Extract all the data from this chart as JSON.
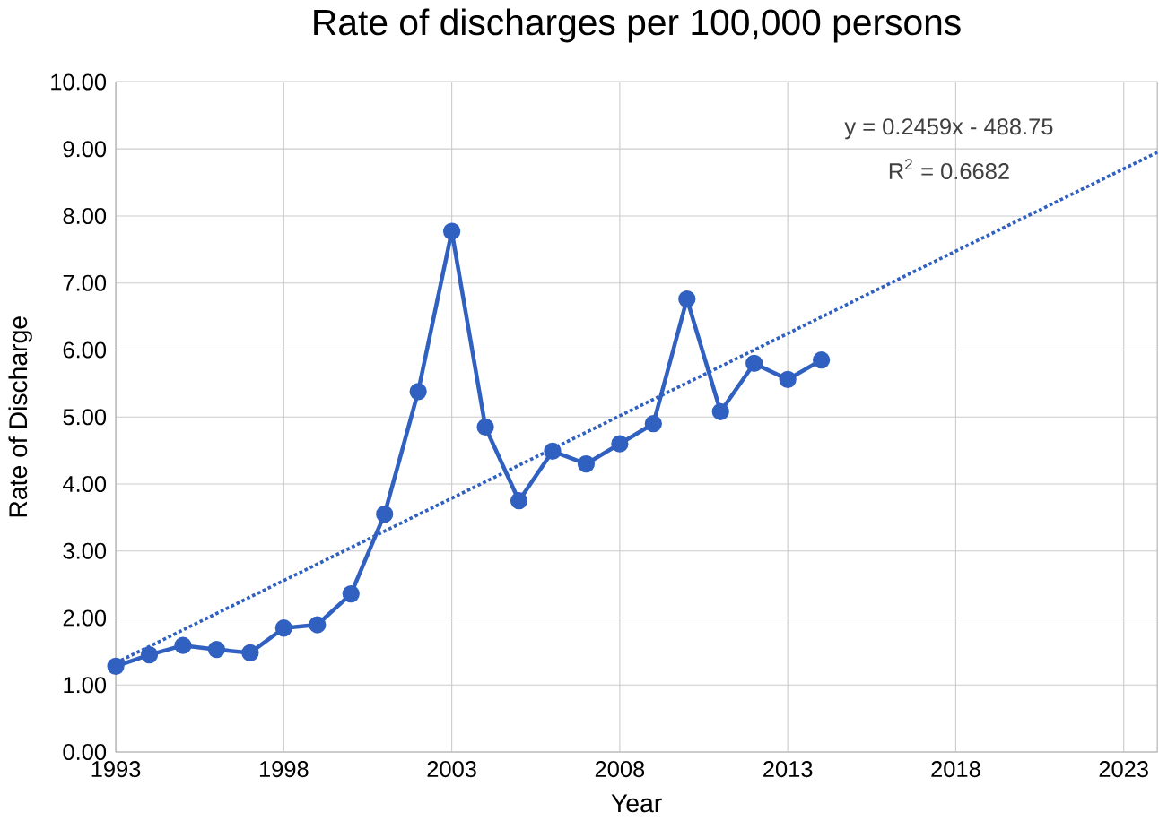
{
  "chart_data": {
    "type": "line",
    "title": "Rate of discharges per 100,000 persons",
    "xlabel": "Year",
    "ylabel": "Rate of Discharge",
    "x": [
      1993,
      1994,
      1995,
      1996,
      1997,
      1998,
      1999,
      2000,
      2001,
      2002,
      2003,
      2004,
      2005,
      2006,
      2007,
      2008,
      2009,
      2010,
      2011,
      2012,
      2013,
      2014
    ],
    "series": [
      {
        "color": "#3060c0",
        "marker": "circle",
        "line_style": "solid",
        "values": [
          1.28,
          1.45,
          1.59,
          1.53,
          1.48,
          1.85,
          1.9,
          2.36,
          3.55,
          5.38,
          7.77,
          4.85,
          3.75,
          4.49,
          4.3,
          4.6,
          4.9,
          6.76,
          5.08,
          5.8,
          5.56,
          5.85
        ]
      },
      {
        "type": "line",
        "color": "#3060c0",
        "marker": "none",
        "line_style": "dotted",
        "x": [
          1993,
          2024
        ],
        "values": [
          1.33,
          8.95
        ]
      }
    ],
    "xlim": [
      1993,
      2024
    ],
    "ylim": [
      0,
      10
    ],
    "xticks": [
      1993,
      1998,
      2003,
      2008,
      2013,
      2018,
      2023
    ],
    "yticks": [
      {
        "value": 0,
        "label": "0.00"
      },
      {
        "value": 1,
        "label": "1.00"
      },
      {
        "value": 2,
        "label": "2.00"
      },
      {
        "value": 3,
        "label": "3.00"
      },
      {
        "value": 4,
        "label": "4.00"
      },
      {
        "value": 5,
        "label": "5.00"
      },
      {
        "value": 6,
        "label": "6.00"
      },
      {
        "value": 7,
        "label": "7.00"
      },
      {
        "value": 8,
        "label": "8.00"
      },
      {
        "value": 9,
        "label": "9.00"
      },
      {
        "value": 10,
        "label": "10.00"
      }
    ],
    "grid": true,
    "annotations": [
      "y = 0.2459x - 488.75",
      "R$^{2}$ = 0.6682"
    ]
  }
}
